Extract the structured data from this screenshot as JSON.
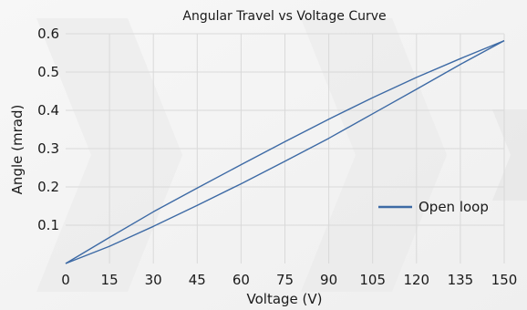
{
  "chart_data": {
    "type": "line",
    "title": "Angular Travel vs Voltage Curve",
    "xlabel": "Voltage (V)",
    "ylabel": "Angle (mrad)",
    "xlim": [
      0,
      150
    ],
    "ylim": [
      0,
      0.6
    ],
    "xticks": [
      0,
      15,
      30,
      45,
      60,
      75,
      90,
      105,
      120,
      135,
      150
    ],
    "yticks": [
      0.1,
      0.2,
      0.3,
      0.4,
      0.5,
      0.6
    ],
    "ytick_labels": [
      "0.1",
      "0.2",
      "0.3",
      "0.4",
      "0.5",
      "0.6"
    ],
    "grid": true,
    "legend_position": "right",
    "series": [
      {
        "name": "Open loop",
        "color": "#3d6aa5",
        "upper": {
          "x": [
            0,
            15,
            30,
            45,
            60,
            75,
            90,
            105,
            120,
            135,
            150
          ],
          "y": [
            0.0,
            0.068,
            0.135,
            0.197,
            0.258,
            0.318,
            0.377,
            0.433,
            0.486,
            0.535,
            0.582
          ]
        },
        "lower": {
          "x": [
            0,
            15,
            30,
            45,
            60,
            75,
            90,
            105,
            120,
            135,
            150
          ],
          "y": [
            0.0,
            0.045,
            0.097,
            0.152,
            0.208,
            0.267,
            0.327,
            0.391,
            0.455,
            0.52,
            0.582
          ]
        }
      }
    ]
  }
}
